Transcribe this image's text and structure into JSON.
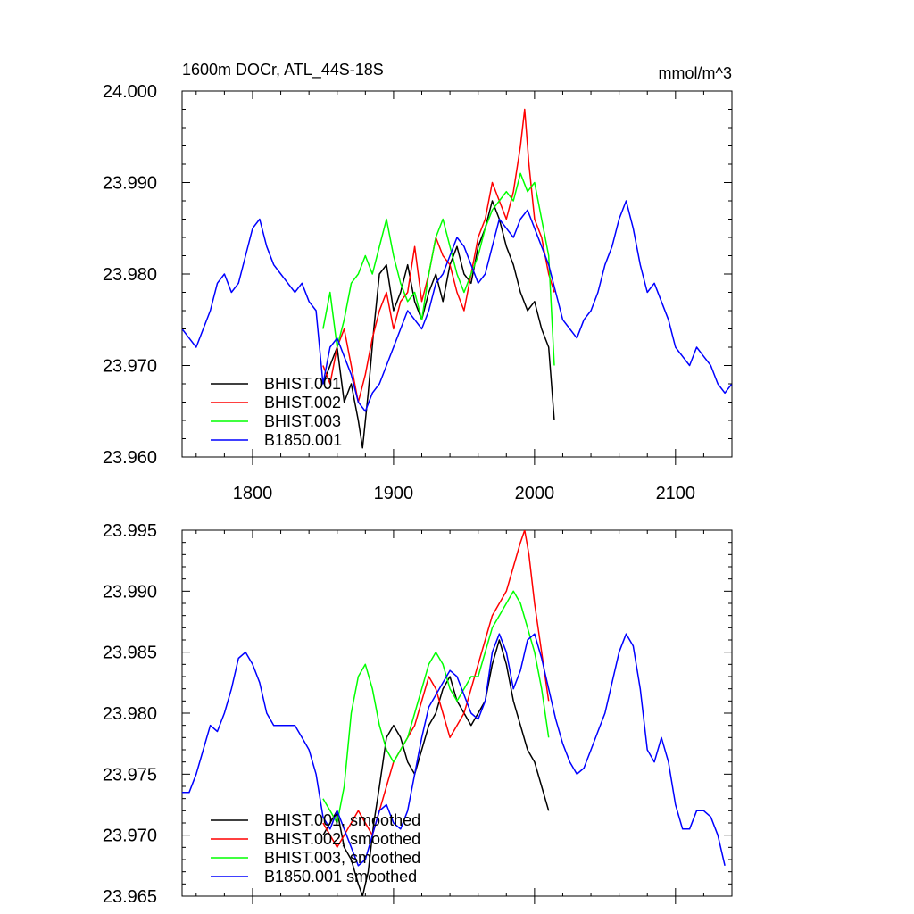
{
  "chart_data": [
    {
      "type": "line",
      "title": "1600m DOCr, ATL_44S-18S",
      "units": "mmol/m^3",
      "xlabel": "",
      "ylabel": "",
      "xlim": [
        1750,
        2140
      ],
      "ylim": [
        23.96,
        24.0
      ],
      "xticks": [
        1800,
        1900,
        2000,
        2100
      ],
      "xtick_labels": [
        "1800",
        "1900",
        "2000",
        "2100"
      ],
      "yticks": [
        23.96,
        23.97,
        23.98,
        23.99,
        24.0
      ],
      "ytick_labels": [
        "23.960",
        "23.970",
        "23.980",
        "23.990",
        "24.000"
      ],
      "grid": false,
      "legend_position": "bottom-left",
      "series": [
        {
          "name": "BHIST.001",
          "color": "#000000",
          "x": [
            1850,
            1855,
            1860,
            1865,
            1870,
            1875,
            1878,
            1882,
            1886,
            1890,
            1895,
            1900,
            1905,
            1910,
            1915,
            1920,
            1925,
            1930,
            1935,
            1940,
            1945,
            1950,
            1955,
            1960,
            1965,
            1970,
            1975,
            1980,
            1985,
            1990,
            1995,
            2000,
            2005,
            2010,
            2014
          ],
          "values": [
            23.968,
            23.97,
            23.972,
            23.966,
            23.968,
            23.964,
            23.961,
            23.967,
            23.974,
            23.98,
            23.981,
            23.976,
            23.978,
            23.981,
            23.977,
            23.975,
            23.978,
            23.98,
            23.977,
            23.981,
            23.983,
            23.98,
            23.979,
            23.983,
            23.985,
            23.988,
            23.986,
            23.983,
            23.981,
            23.978,
            23.976,
            23.977,
            23.974,
            23.972,
            23.964
          ]
        },
        {
          "name": "BHIST.002",
          "color": "#ff0000",
          "x": [
            1850,
            1855,
            1860,
            1865,
            1870,
            1875,
            1880,
            1885,
            1890,
            1895,
            1900,
            1905,
            1910,
            1915,
            1920,
            1925,
            1930,
            1935,
            1940,
            1945,
            1950,
            1955,
            1960,
            1965,
            1970,
            1975,
            1980,
            1985,
            1990,
            1993,
            1996,
            2000,
            2005,
            2010,
            2014
          ],
          "values": [
            23.97,
            23.968,
            23.972,
            23.974,
            23.97,
            23.966,
            23.969,
            23.973,
            23.976,
            23.978,
            23.974,
            23.977,
            23.978,
            23.983,
            23.977,
            23.98,
            23.984,
            23.982,
            23.981,
            23.978,
            23.976,
            23.98,
            23.984,
            23.986,
            23.99,
            23.988,
            23.986,
            23.989,
            23.994,
            23.998,
            23.992,
            23.986,
            23.984,
            23.98,
            23.978
          ]
        },
        {
          "name": "BHIST.003",
          "color": "#00ff00",
          "x": [
            1850,
            1855,
            1860,
            1865,
            1870,
            1875,
            1880,
            1885,
            1890,
            1895,
            1900,
            1905,
            1910,
            1915,
            1920,
            1925,
            1930,
            1935,
            1940,
            1945,
            1950,
            1955,
            1960,
            1965,
            1970,
            1975,
            1980,
            1985,
            1990,
            1995,
            2000,
            2005,
            2010,
            2014
          ],
          "values": [
            23.974,
            23.978,
            23.972,
            23.975,
            23.979,
            23.98,
            23.982,
            23.98,
            23.983,
            23.986,
            23.982,
            23.979,
            23.977,
            23.978,
            23.975,
            23.98,
            23.984,
            23.986,
            23.983,
            23.98,
            23.978,
            23.98,
            23.982,
            23.985,
            23.987,
            23.988,
            23.989,
            23.988,
            23.991,
            23.989,
            23.99,
            23.986,
            23.982,
            23.97
          ]
        },
        {
          "name": "B1850.001",
          "color": "#0000ff",
          "x": [
            1750,
            1755,
            1760,
            1765,
            1770,
            1775,
            1780,
            1785,
            1790,
            1795,
            1800,
            1805,
            1810,
            1815,
            1820,
            1825,
            1830,
            1835,
            1840,
            1845,
            1850,
            1855,
            1860,
            1865,
            1870,
            1875,
            1880,
            1885,
            1890,
            1895,
            1900,
            1905,
            1910,
            1915,
            1920,
            1925,
            1930,
            1935,
            1940,
            1945,
            1950,
            1955,
            1960,
            1965,
            1970,
            1975,
            1980,
            1985,
            1990,
            1995,
            2000,
            2005,
            2010,
            2015,
            2020,
            2025,
            2030,
            2035,
            2040,
            2045,
            2050,
            2055,
            2060,
            2065,
            2070,
            2075,
            2080,
            2085,
            2090,
            2095,
            2100,
            2105,
            2110,
            2115,
            2120,
            2125,
            2130,
            2135,
            2140
          ],
          "values": [
            23.974,
            23.973,
            23.972,
            23.974,
            23.976,
            23.979,
            23.98,
            23.978,
            23.979,
            23.982,
            23.985,
            23.986,
            23.983,
            23.981,
            23.98,
            23.979,
            23.978,
            23.979,
            23.977,
            23.976,
            23.968,
            23.972,
            23.973,
            23.971,
            23.969,
            23.966,
            23.965,
            23.967,
            23.968,
            23.97,
            23.972,
            23.974,
            23.976,
            23.975,
            23.974,
            23.976,
            23.979,
            23.98,
            23.982,
            23.984,
            23.983,
            23.981,
            23.979,
            23.98,
            23.983,
            23.986,
            23.985,
            23.984,
            23.986,
            23.987,
            23.985,
            23.983,
            23.981,
            23.978,
            23.975,
            23.974,
            23.973,
            23.975,
            23.976,
            23.978,
            23.981,
            23.983,
            23.986,
            23.988,
            23.985,
            23.981,
            23.978,
            23.979,
            23.977,
            23.975,
            23.972,
            23.971,
            23.97,
            23.972,
            23.971,
            23.97,
            23.968,
            23.967,
            23.968
          ]
        }
      ]
    },
    {
      "type": "line",
      "title": "",
      "xlabel": "",
      "ylabel": "",
      "xlim": [
        1750,
        2140
      ],
      "ylim": [
        23.965,
        23.995
      ],
      "xticks": [
        1800,
        1900,
        2000,
        2100
      ],
      "yticks": [
        23.965,
        23.97,
        23.975,
        23.98,
        23.985,
        23.99,
        23.995
      ],
      "ytick_labels": [
        "23.965",
        "23.970",
        "23.975",
        "23.980",
        "23.985",
        "23.990",
        "23.995"
      ],
      "grid": false,
      "legend_position": "bottom-left",
      "series": [
        {
          "name": "BHIST.001, smoothed",
          "color": "#000000",
          "x": [
            1850,
            1855,
            1860,
            1865,
            1870,
            1875,
            1878,
            1882,
            1886,
            1890,
            1895,
            1900,
            1905,
            1910,
            1915,
            1920,
            1925,
            1930,
            1935,
            1940,
            1945,
            1950,
            1955,
            1960,
            1965,
            1970,
            1975,
            1980,
            1985,
            1990,
            1995,
            2000,
            2005,
            2010
          ],
          "values": [
            23.97,
            23.971,
            23.972,
            23.969,
            23.968,
            23.966,
            23.965,
            23.967,
            23.971,
            23.974,
            23.978,
            23.979,
            23.978,
            23.976,
            23.975,
            23.977,
            23.979,
            23.98,
            23.982,
            23.983,
            23.981,
            23.98,
            23.979,
            23.98,
            23.981,
            23.984,
            23.986,
            23.984,
            23.981,
            23.979,
            23.977,
            23.976,
            23.974,
            23.972
          ]
        },
        {
          "name": "BHIST.002, smoothed",
          "color": "#ff0000",
          "x": [
            1850,
            1855,
            1860,
            1865,
            1870,
            1875,
            1880,
            1885,
            1890,
            1895,
            1900,
            1905,
            1910,
            1915,
            1920,
            1925,
            1930,
            1935,
            1940,
            1945,
            1950,
            1955,
            1960,
            1965,
            1970,
            1975,
            1980,
            1985,
            1990,
            1993,
            1996,
            2000,
            2005,
            2010
          ],
          "values": [
            23.971,
            23.97,
            23.969,
            23.97,
            23.971,
            23.972,
            23.971,
            23.97,
            23.972,
            23.974,
            23.976,
            23.977,
            23.978,
            23.979,
            23.981,
            23.983,
            23.982,
            23.98,
            23.978,
            23.979,
            23.98,
            23.982,
            23.984,
            23.986,
            23.988,
            23.989,
            23.99,
            23.992,
            23.994,
            23.995,
            23.993,
            23.989,
            23.985,
            23.981
          ]
        },
        {
          "name": "BHIST.003, smoothed",
          "color": "#00ff00",
          "x": [
            1850,
            1855,
            1860,
            1865,
            1870,
            1875,
            1880,
            1885,
            1890,
            1895,
            1900,
            1905,
            1910,
            1915,
            1920,
            1925,
            1930,
            1935,
            1940,
            1945,
            1950,
            1955,
            1960,
            1965,
            1970,
            1975,
            1980,
            1985,
            1990,
            1995,
            2000,
            2005,
            2010
          ],
          "values": [
            23.973,
            23.972,
            23.971,
            23.974,
            23.98,
            23.983,
            23.984,
            23.982,
            23.979,
            23.977,
            23.976,
            23.977,
            23.978,
            23.98,
            23.982,
            23.984,
            23.985,
            23.984,
            23.982,
            23.981,
            23.982,
            23.983,
            23.983,
            23.985,
            23.987,
            23.988,
            23.989,
            23.99,
            23.989,
            23.987,
            23.985,
            23.982,
            23.978
          ]
        },
        {
          "name": "B1850.001 smoothed",
          "color": "#0000ff",
          "x": [
            1750,
            1755,
            1760,
            1765,
            1770,
            1775,
            1780,
            1785,
            1790,
            1795,
            1800,
            1805,
            1810,
            1815,
            1820,
            1825,
            1830,
            1835,
            1840,
            1845,
            1850,
            1855,
            1860,
            1865,
            1870,
            1875,
            1880,
            1885,
            1890,
            1895,
            1900,
            1905,
            1910,
            1915,
            1920,
            1925,
            1930,
            1935,
            1940,
            1945,
            1950,
            1955,
            1960,
            1965,
            1970,
            1975,
            1980,
            1985,
            1990,
            1995,
            2000,
            2005,
            2010,
            2015,
            2020,
            2025,
            2030,
            2035,
            2040,
            2045,
            2050,
            2055,
            2060,
            2065,
            2070,
            2075,
            2080,
            2085,
            2090,
            2095,
            2100,
            2105,
            2110,
            2115,
            2120,
            2125,
            2130,
            2135
          ],
          "values": [
            23.9735,
            23.9735,
            23.975,
            23.977,
            23.979,
            23.9785,
            23.98,
            23.982,
            23.9845,
            23.985,
            23.984,
            23.9825,
            23.98,
            23.979,
            23.979,
            23.979,
            23.979,
            23.978,
            23.977,
            23.975,
            23.9715,
            23.9705,
            23.972,
            23.9705,
            23.969,
            23.9675,
            23.968,
            23.97,
            23.972,
            23.9725,
            23.971,
            23.9705,
            23.972,
            23.975,
            23.978,
            23.9805,
            23.9815,
            23.9825,
            23.9835,
            23.983,
            23.9815,
            23.98,
            23.9795,
            23.981,
            23.985,
            23.9865,
            23.985,
            23.982,
            23.9835,
            23.986,
            23.9865,
            23.9845,
            23.982,
            23.9795,
            23.9775,
            23.976,
            23.975,
            23.9755,
            23.977,
            23.9785,
            23.98,
            23.9825,
            23.985,
            23.9865,
            23.9855,
            23.982,
            23.977,
            23.976,
            23.978,
            23.976,
            23.9725,
            23.9705,
            23.9705,
            23.972,
            23.972,
            23.9715,
            23.97,
            23.9675
          ]
        }
      ]
    }
  ]
}
